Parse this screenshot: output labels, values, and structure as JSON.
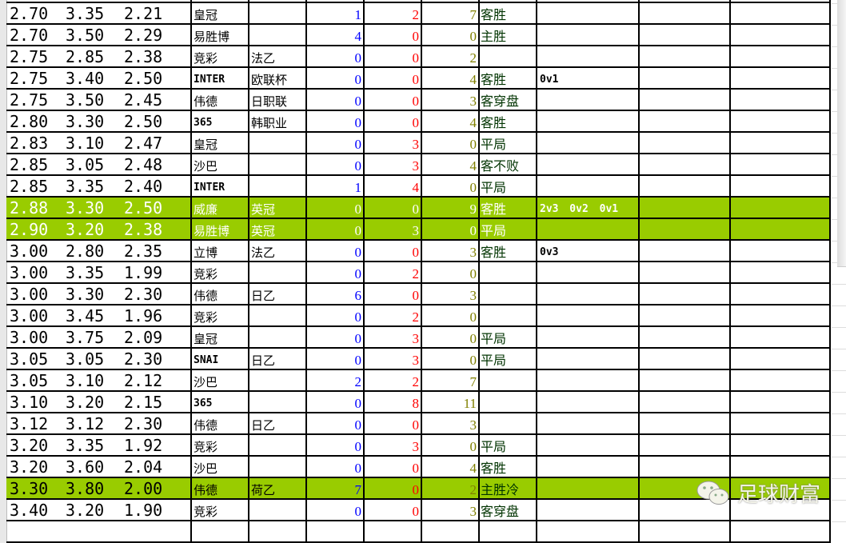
{
  "colors": {
    "highlight": "#99cc00",
    "home_count": "#0000ff",
    "draw_count": "#ff0000",
    "away_count": "#808000",
    "result": "#003300"
  },
  "rows": [
    {
      "o1": "2.70",
      "o2": "3.35",
      "o3": "2.21",
      "company": "皇冠",
      "league": "",
      "c1": "1",
      "c2": "2",
      "c3": "7",
      "result": "客胜",
      "score": "",
      "hl": false
    },
    {
      "o1": "2.70",
      "o2": "3.50",
      "o3": "2.29",
      "company": "易胜博",
      "league": "",
      "c1": "4",
      "c2": "0",
      "c3": "0",
      "result": "主胜",
      "score": "",
      "hl": false
    },
    {
      "o1": "2.75",
      "o2": "2.85",
      "o3": "2.38",
      "company": "竞彩",
      "league": "法乙",
      "c1": "0",
      "c2": "0",
      "c3": "2",
      "result": "",
      "score": "",
      "hl": false
    },
    {
      "o1": "2.75",
      "o2": "3.40",
      "o3": "2.50",
      "company": "INTER",
      "league": "欧联杯",
      "c1": "0",
      "c2": "0",
      "c3": "4",
      "result": "客胜",
      "score": "0v1",
      "hl": false
    },
    {
      "o1": "2.75",
      "o2": "3.50",
      "o3": "2.45",
      "company": "伟德",
      "league": "日职联",
      "c1": "0",
      "c2": "0",
      "c3": "3",
      "result": "客穿盘",
      "score": "",
      "hl": false
    },
    {
      "o1": "2.80",
      "o2": "3.30",
      "o3": "2.50",
      "company": "365",
      "league": "韩职业",
      "c1": "0",
      "c2": "0",
      "c3": "4",
      "result": "客胜",
      "score": "",
      "hl": false
    },
    {
      "o1": "2.83",
      "o2": "3.10",
      "o3": "2.47",
      "company": "皇冠",
      "league": "",
      "c1": "0",
      "c2": "3",
      "c3": "0",
      "result": "平局",
      "score": "",
      "hl": false
    },
    {
      "o1": "2.85",
      "o2": "3.05",
      "o3": "2.48",
      "company": "沙巴",
      "league": "",
      "c1": "0",
      "c2": "3",
      "c3": "4",
      "result": "客不败",
      "score": "",
      "hl": false
    },
    {
      "o1": "2.85",
      "o2": "3.35",
      "o3": "2.40",
      "company": "INTER",
      "league": "",
      "c1": "1",
      "c2": "4",
      "c3": "0",
      "result": "平局",
      "score": "",
      "hl": false
    },
    {
      "o1": "2.88",
      "o2": "3.30",
      "o3": "2.50",
      "company": "威廉",
      "league": "英冠",
      "c1": "0",
      "c2": "0",
      "c3": "9",
      "result": "客胜",
      "score": "2v3  0v2  0v1",
      "hl": true,
      "white": true
    },
    {
      "o1": "2.90",
      "o2": "3.20",
      "o3": "2.38",
      "company": "易胜博",
      "league": "英冠",
      "c1": "0",
      "c2": "3",
      "c3": "0",
      "result": "平局",
      "score": "",
      "hl": true,
      "white": true
    },
    {
      "o1": "3.00",
      "o2": "2.80",
      "o3": "2.35",
      "company": "立博",
      "league": "法乙",
      "c1": "0",
      "c2": "0",
      "c3": "3",
      "result": "客胜",
      "score": "0v3",
      "hl": false
    },
    {
      "o1": "3.00",
      "o2": "3.35",
      "o3": "1.99",
      "company": "竞彩",
      "league": "",
      "c1": "0",
      "c2": "2",
      "c3": "0",
      "result": "",
      "score": "",
      "hl": false
    },
    {
      "o1": "3.00",
      "o2": "3.30",
      "o3": "2.30",
      "company": "伟德",
      "league": "日乙",
      "c1": "6",
      "c2": "0",
      "c3": "3",
      "result": "",
      "score": "",
      "hl": false
    },
    {
      "o1": "3.00",
      "o2": "3.45",
      "o3": "1.96",
      "company": "竞彩",
      "league": "",
      "c1": "0",
      "c2": "2",
      "c3": "0",
      "result": "",
      "score": "",
      "hl": false
    },
    {
      "o1": "3.00",
      "o2": "3.75",
      "o3": "2.09",
      "company": "皇冠",
      "league": "",
      "c1": "0",
      "c2": "3",
      "c3": "0",
      "result": "平局",
      "score": "",
      "hl": false
    },
    {
      "o1": "3.05",
      "o2": "3.05",
      "o3": "2.30",
      "company": "SNAI",
      "league": "日乙",
      "c1": "0",
      "c2": "3",
      "c3": "0",
      "result": "平局",
      "score": "",
      "hl": false
    },
    {
      "o1": "3.05",
      "o2": "3.10",
      "o3": "2.12",
      "company": "沙巴",
      "league": "",
      "c1": "2",
      "c2": "2",
      "c3": "7",
      "result": "",
      "score": "",
      "hl": false
    },
    {
      "o1": "3.10",
      "o2": "3.20",
      "o3": "2.15",
      "company": "365",
      "league": "",
      "c1": "0",
      "c2": "8",
      "c3": "11",
      "result": "",
      "score": "",
      "hl": false
    },
    {
      "o1": "3.12",
      "o2": "3.12",
      "o3": "2.30",
      "company": "伟德",
      "league": "日乙",
      "c1": "0",
      "c2": "0",
      "c3": "3",
      "result": "",
      "score": "",
      "hl": false
    },
    {
      "o1": "3.20",
      "o2": "3.35",
      "o3": "1.92",
      "company": "竞彩",
      "league": "",
      "c1": "0",
      "c2": "3",
      "c3": "0",
      "result": "平局",
      "score": "",
      "hl": false
    },
    {
      "o1": "3.20",
      "o2": "3.60",
      "o3": "2.04",
      "company": "沙巴",
      "league": "",
      "c1": "0",
      "c2": "0",
      "c3": "4",
      "result": "客胜",
      "score": "",
      "hl": false
    },
    {
      "o1": "3.30",
      "o2": "3.80",
      "o3": "2.00",
      "company": "伟德",
      "league": "荷乙",
      "c1": "7",
      "c2": "0",
      "c3": "2",
      "result": "主胜冷",
      "score": "",
      "hl": true
    },
    {
      "o1": "3.40",
      "o2": "3.20",
      "o3": "1.90",
      "company": "竞彩",
      "league": "",
      "c1": "0",
      "c2": "0",
      "c3": "3",
      "result": "客穿盘",
      "score": "",
      "hl": false
    }
  ],
  "watermark": {
    "icon": "wechat-icon",
    "text": "足球财富"
  }
}
